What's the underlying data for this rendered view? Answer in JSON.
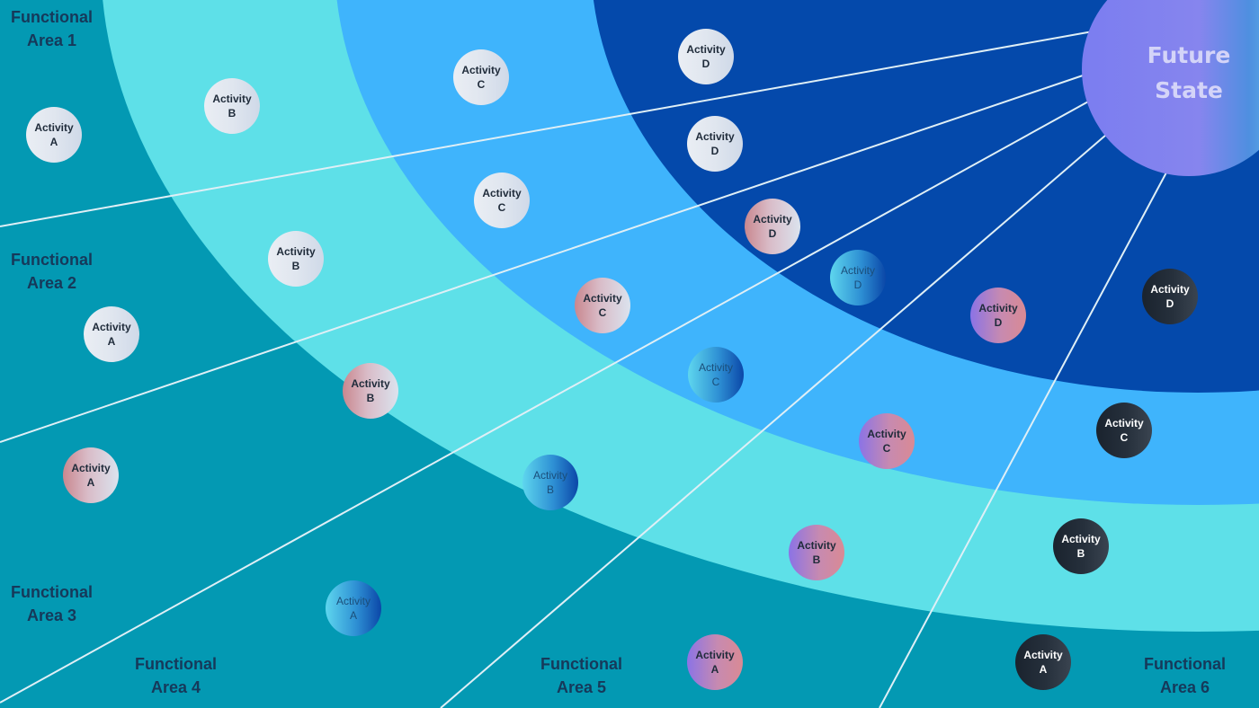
{
  "areas": [
    {
      "line1": "Functional",
      "line2": "Area 1"
    },
    {
      "line1": "Functional",
      "line2": "Area 2"
    },
    {
      "line1": "Functional",
      "line2": "Area 3"
    },
    {
      "line1": "Functional",
      "line2": "Area 4"
    },
    {
      "line1": "Functional",
      "line2": "Area 5"
    },
    {
      "line1": "Functional",
      "line2": "Area 6"
    }
  ],
  "center": {
    "line1": "Future",
    "line2": "State"
  },
  "activities": [
    {
      "area": 1,
      "word": "Activity",
      "letter": "A",
      "style": "light"
    },
    {
      "area": 1,
      "word": "Activity",
      "letter": "B",
      "style": "light"
    },
    {
      "area": 1,
      "word": "Activity",
      "letter": "C",
      "style": "light"
    },
    {
      "area": 1,
      "word": "Activity",
      "letter": "D",
      "style": "light"
    },
    {
      "area": 2,
      "word": "Activity",
      "letter": "A",
      "style": "light"
    },
    {
      "area": 2,
      "word": "Activity",
      "letter": "B",
      "style": "light"
    },
    {
      "area": 2,
      "word": "Activity",
      "letter": "C",
      "style": "light"
    },
    {
      "area": 2,
      "word": "Activity",
      "letter": "D",
      "style": "light"
    },
    {
      "area": 3,
      "word": "Activity",
      "letter": "A",
      "style": "rose"
    },
    {
      "area": 3,
      "word": "Activity",
      "letter": "B",
      "style": "rose"
    },
    {
      "area": 3,
      "word": "Activity",
      "letter": "C",
      "style": "rose"
    },
    {
      "area": 3,
      "word": "Activity",
      "letter": "D",
      "style": "rose"
    },
    {
      "area": 4,
      "word": "Activity",
      "letter": "A",
      "style": "blue"
    },
    {
      "area": 4,
      "word": "Activity",
      "letter": "B",
      "style": "blue"
    },
    {
      "area": 4,
      "word": "Activity",
      "letter": "C",
      "style": "blue"
    },
    {
      "area": 4,
      "word": "Activity",
      "letter": "D",
      "style": "blue"
    },
    {
      "area": 5,
      "word": "Activity",
      "letter": "A",
      "style": "purple"
    },
    {
      "area": 5,
      "word": "Activity",
      "letter": "B",
      "style": "purple"
    },
    {
      "area": 5,
      "word": "Activity",
      "letter": "C",
      "style": "purple"
    },
    {
      "area": 5,
      "word": "Activity",
      "letter": "D",
      "style": "purple"
    },
    {
      "area": 6,
      "word": "Activity",
      "letter": "A",
      "style": "dark"
    },
    {
      "area": 6,
      "word": "Activity",
      "letter": "B",
      "style": "dark"
    },
    {
      "area": 6,
      "word": "Activity",
      "letter": "C",
      "style": "dark"
    },
    {
      "area": 6,
      "word": "Activity",
      "letter": "D",
      "style": "dark"
    }
  ],
  "colors": {
    "outer_band": "#0399b3",
    "band_1": "#5ee0e8",
    "band_2": "#3fb4fc",
    "band_3": "#0449ab",
    "divider": "#dfeff6",
    "label": "#16395a"
  }
}
